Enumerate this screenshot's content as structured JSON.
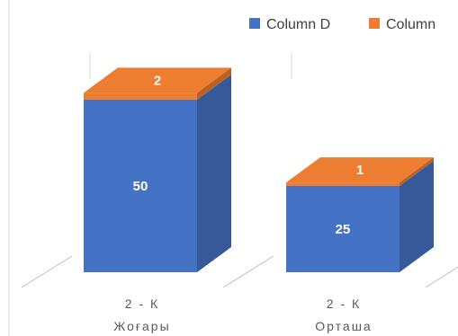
{
  "chart_data": {
    "type": "bar",
    "stacked": true,
    "three_d": true,
    "categories": [
      [
        "2 - К",
        "Жоғары"
      ],
      [
        "2 - К",
        "Орташа"
      ]
    ],
    "series": [
      {
        "name": "Column D",
        "values": [
          50,
          25
        ],
        "color": "#4472C4"
      },
      {
        "name": "Column",
        "values": [
          2,
          1
        ],
        "color": "#ED7D31"
      }
    ],
    "legend_position": "top-right",
    "data_labels": true,
    "gridlines": false
  }
}
